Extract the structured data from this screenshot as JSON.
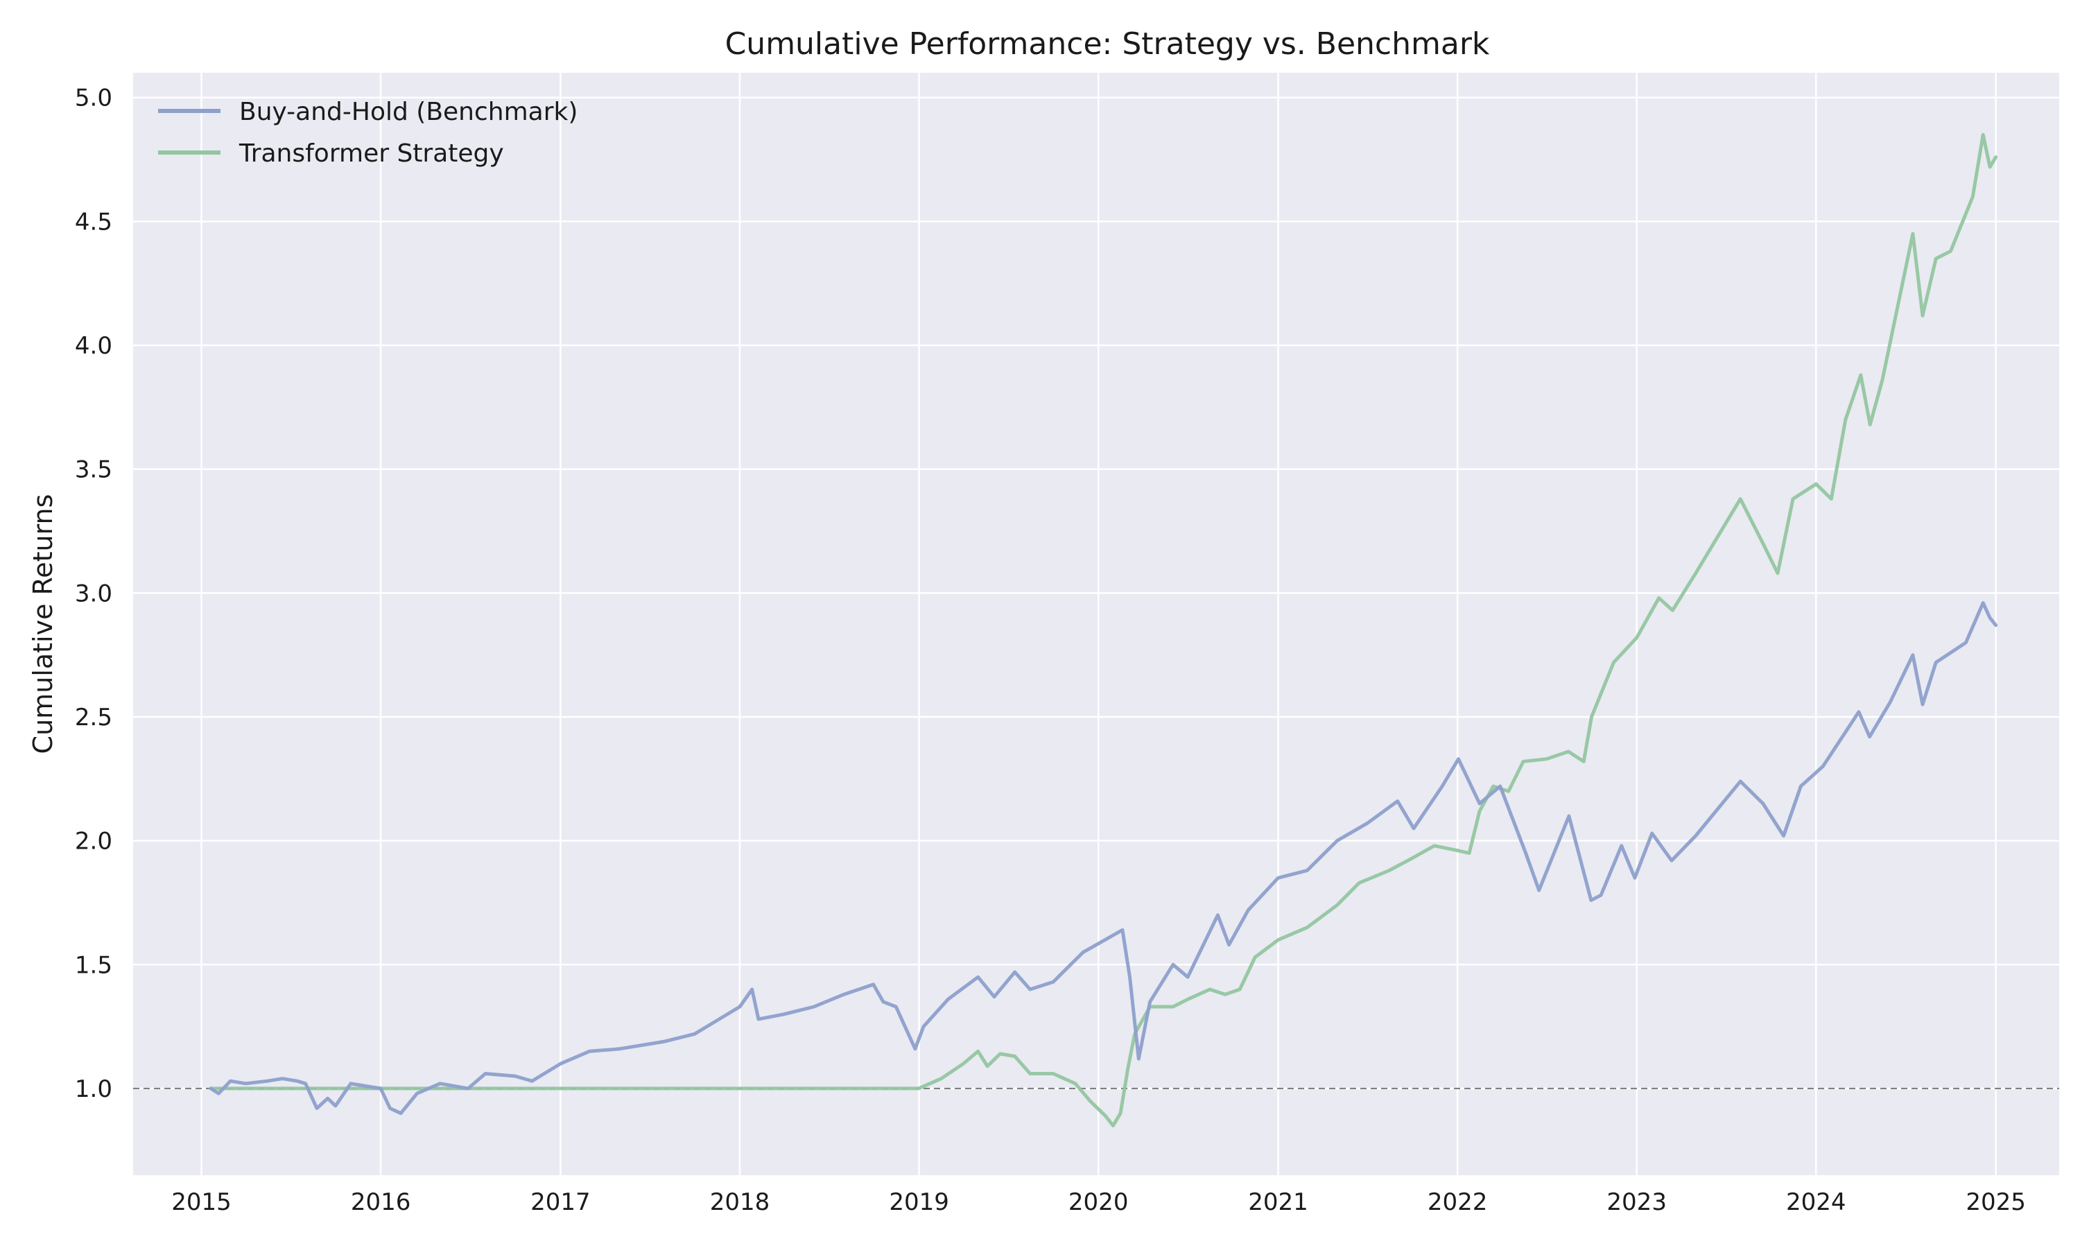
{
  "chart_data": {
    "type": "line",
    "title": "Cumulative Performance: Strategy vs. Benchmark",
    "xlabel": "",
    "ylabel": "Cumulative Returns",
    "xlim": [
      "2014-08-15",
      "2025-05-10"
    ],
    "ylim": [
      0.65,
      5.1
    ],
    "x_ticks": [
      "2015",
      "2016",
      "2017",
      "2018",
      "2019",
      "2020",
      "2021",
      "2022",
      "2023",
      "2024",
      "2025"
    ],
    "y_ticks": [
      "1.0",
      "1.5",
      "2.0",
      "2.5",
      "3.0",
      "3.5",
      "4.0",
      "4.5",
      "5.0"
    ],
    "grid": true,
    "legend_position": "upper-left",
    "reference_line": {
      "y": 1.0,
      "style": "dashed",
      "color": "#808080"
    },
    "colors": {
      "background": "#eaeaf2",
      "grid": "#ffffff",
      "benchmark": "#8da0cb",
      "strategy": "#93c6a0"
    },
    "series": [
      {
        "name": "Buy-and-Hold (Benchmark)",
        "points": [
          [
            "2015-01-20",
            1.0
          ],
          [
            "2015-02-05",
            0.98
          ],
          [
            "2015-03-01",
            1.03
          ],
          [
            "2015-04-01",
            1.02
          ],
          [
            "2015-05-15",
            1.03
          ],
          [
            "2015-06-15",
            1.04
          ],
          [
            "2015-07-15",
            1.03
          ],
          [
            "2015-08-01",
            1.02
          ],
          [
            "2015-08-24",
            0.92
          ],
          [
            "2015-09-15",
            0.96
          ],
          [
            "2015-10-01",
            0.93
          ],
          [
            "2015-11-01",
            1.02
          ],
          [
            "2015-12-01",
            1.01
          ],
          [
            "2016-01-01",
            1.0
          ],
          [
            "2016-01-20",
            0.92
          ],
          [
            "2016-02-11",
            0.9
          ],
          [
            "2016-03-15",
            0.98
          ],
          [
            "2016-05-01",
            1.02
          ],
          [
            "2016-06-27",
            1.0
          ],
          [
            "2016-08-01",
            1.06
          ],
          [
            "2016-10-01",
            1.05
          ],
          [
            "2016-11-04",
            1.03
          ],
          [
            "2017-01-01",
            1.1
          ],
          [
            "2017-03-01",
            1.15
          ],
          [
            "2017-05-01",
            1.16
          ],
          [
            "2017-08-01",
            1.19
          ],
          [
            "2017-10-01",
            1.22
          ],
          [
            "2018-01-01",
            1.33
          ],
          [
            "2018-01-26",
            1.4
          ],
          [
            "2018-02-08",
            1.28
          ],
          [
            "2018-04-01",
            1.3
          ],
          [
            "2018-06-01",
            1.33
          ],
          [
            "2018-08-01",
            1.38
          ],
          [
            "2018-09-30",
            1.42
          ],
          [
            "2018-10-20",
            1.35
          ],
          [
            "2018-11-15",
            1.33
          ],
          [
            "2018-12-24",
            1.16
          ],
          [
            "2019-01-10",
            1.25
          ],
          [
            "2019-03-01",
            1.36
          ],
          [
            "2019-05-01",
            1.45
          ],
          [
            "2019-06-03",
            1.37
          ],
          [
            "2019-07-15",
            1.47
          ],
          [
            "2019-08-15",
            1.4
          ],
          [
            "2019-10-01",
            1.43
          ],
          [
            "2019-12-01",
            1.55
          ],
          [
            "2020-02-19",
            1.64
          ],
          [
            "2020-03-05",
            1.45
          ],
          [
            "2020-03-23",
            1.12
          ],
          [
            "2020-04-15",
            1.35
          ],
          [
            "2020-06-01",
            1.5
          ],
          [
            "2020-07-01",
            1.45
          ],
          [
            "2020-08-31",
            1.7
          ],
          [
            "2020-09-23",
            1.58
          ],
          [
            "2020-11-01",
            1.72
          ],
          [
            "2021-01-01",
            1.85
          ],
          [
            "2021-03-01",
            1.88
          ],
          [
            "2021-05-01",
            2.0
          ],
          [
            "2021-07-01",
            2.07
          ],
          [
            "2021-09-01",
            2.16
          ],
          [
            "2021-10-04",
            2.05
          ],
          [
            "2021-12-01",
            2.22
          ],
          [
            "2022-01-03",
            2.33
          ],
          [
            "2022-02-15",
            2.15
          ],
          [
            "2022-03-29",
            2.22
          ],
          [
            "2022-05-20",
            1.95
          ],
          [
            "2022-06-16",
            1.8
          ],
          [
            "2022-08-16",
            2.1
          ],
          [
            "2022-09-30",
            1.76
          ],
          [
            "2022-10-20",
            1.78
          ],
          [
            "2022-12-01",
            1.98
          ],
          [
            "2022-12-28",
            1.85
          ],
          [
            "2023-02-01",
            2.03
          ],
          [
            "2023-03-13",
            1.92
          ],
          [
            "2023-05-01",
            2.02
          ],
          [
            "2023-07-31",
            2.24
          ],
          [
            "2023-09-15",
            2.15
          ],
          [
            "2023-10-27",
            2.02
          ],
          [
            "2023-12-01",
            2.22
          ],
          [
            "2024-01-15",
            2.3
          ],
          [
            "2024-03-28",
            2.52
          ],
          [
            "2024-04-19",
            2.42
          ],
          [
            "2024-05-31",
            2.56
          ],
          [
            "2024-07-16",
            2.75
          ],
          [
            "2024-08-05",
            2.55
          ],
          [
            "2024-09-01",
            2.72
          ],
          [
            "2024-11-01",
            2.8
          ],
          [
            "2024-12-06",
            2.96
          ],
          [
            "2024-12-20",
            2.9
          ],
          [
            "2025-01-01",
            2.87
          ]
        ]
      },
      {
        "name": "Transformer Strategy",
        "points": [
          [
            "2015-01-20",
            1.0
          ],
          [
            "2018-12-31",
            1.0
          ],
          [
            "2019-02-15",
            1.04
          ],
          [
            "2019-04-01",
            1.1
          ],
          [
            "2019-05-01",
            1.15
          ],
          [
            "2019-05-20",
            1.09
          ],
          [
            "2019-06-15",
            1.14
          ],
          [
            "2019-07-15",
            1.13
          ],
          [
            "2019-08-15",
            1.06
          ],
          [
            "2019-10-01",
            1.06
          ],
          [
            "2019-11-15",
            1.02
          ],
          [
            "2019-12-15",
            0.95
          ],
          [
            "2020-01-15",
            0.89
          ],
          [
            "2020-01-31",
            0.85
          ],
          [
            "2020-02-15",
            0.9
          ],
          [
            "2020-03-01",
            1.08
          ],
          [
            "2020-03-15",
            1.22
          ],
          [
            "2020-04-15",
            1.33
          ],
          [
            "2020-06-01",
            1.33
          ],
          [
            "2020-07-01",
            1.36
          ],
          [
            "2020-08-15",
            1.4
          ],
          [
            "2020-09-15",
            1.38
          ],
          [
            "2020-10-15",
            1.4
          ],
          [
            "2020-11-15",
            1.53
          ],
          [
            "2021-01-01",
            1.6
          ],
          [
            "2021-03-01",
            1.65
          ],
          [
            "2021-05-01",
            1.74
          ],
          [
            "2021-06-15",
            1.83
          ],
          [
            "2021-08-15",
            1.88
          ],
          [
            "2021-10-01",
            1.93
          ],
          [
            "2021-11-15",
            1.98
          ],
          [
            "2022-01-03",
            1.96
          ],
          [
            "2022-01-25",
            1.95
          ],
          [
            "2022-02-15",
            2.12
          ],
          [
            "2022-03-15",
            2.22
          ],
          [
            "2022-04-15",
            2.2
          ],
          [
            "2022-05-15",
            2.32
          ],
          [
            "2022-07-01",
            2.33
          ],
          [
            "2022-08-15",
            2.36
          ],
          [
            "2022-09-15",
            2.32
          ],
          [
            "2022-10-01",
            2.5
          ],
          [
            "2022-11-15",
            2.72
          ],
          [
            "2023-01-01",
            2.82
          ],
          [
            "2023-02-15",
            2.98
          ],
          [
            "2023-03-15",
            2.93
          ],
          [
            "2023-05-01",
            3.08
          ],
          [
            "2023-07-31",
            3.38
          ],
          [
            "2023-09-15",
            3.2
          ],
          [
            "2023-10-15",
            3.08
          ],
          [
            "2023-11-15",
            3.38
          ],
          [
            "2024-01-01",
            3.44
          ],
          [
            "2024-02-01",
            3.38
          ],
          [
            "2024-03-01",
            3.7
          ],
          [
            "2024-04-01",
            3.88
          ],
          [
            "2024-04-20",
            3.68
          ],
          [
            "2024-05-15",
            3.86
          ],
          [
            "2024-07-16",
            4.45
          ],
          [
            "2024-08-05",
            4.12
          ],
          [
            "2024-09-01",
            4.35
          ],
          [
            "2024-10-01",
            4.38
          ],
          [
            "2024-11-15",
            4.6
          ],
          [
            "2024-12-06",
            4.85
          ],
          [
            "2024-12-20",
            4.72
          ],
          [
            "2025-01-01",
            4.76
          ]
        ]
      }
    ]
  }
}
